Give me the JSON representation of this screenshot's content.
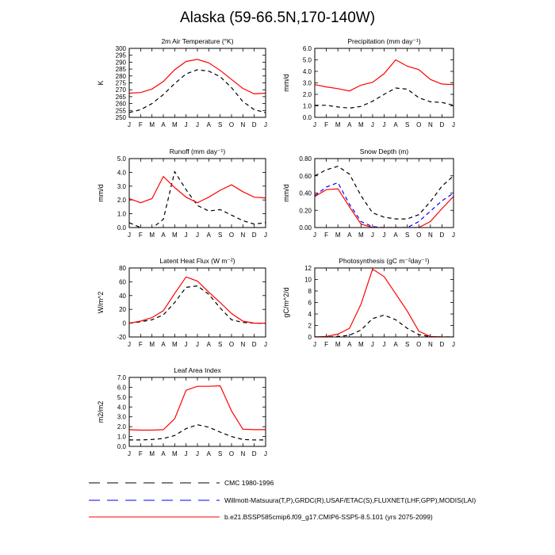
{
  "title": "Alaska (59-66.5N,170-140W)",
  "months": [
    "J",
    "F",
    "M",
    "A",
    "M",
    "J",
    "J",
    "A",
    "S",
    "O",
    "N",
    "D",
    "J"
  ],
  "colors": {
    "cmc": "#000000",
    "obs": "#0000ff",
    "model": "#ff0000"
  },
  "legend": [
    {
      "key": "cmc",
      "label": "CMC 1980-1996",
      "style": "dashed",
      "color": "#000000"
    },
    {
      "key": "obs",
      "label": "Willmott-Matsuura(T,P),GRDC(R),USAF/ETAC(S),FLUXNET(LHF,GPP),MODIS(LAI)",
      "style": "dashed",
      "color": "#0000ff"
    },
    {
      "key": "model",
      "label": "b.e21.BSSP585cmip6.f09_g17.CMIP6-SSP5-8.5.101 (yrs 2075-2099)",
      "style": "solid",
      "color": "#ff0000"
    }
  ],
  "chart_data": [
    {
      "type": "line",
      "title": "2m Air Temperature (°K)",
      "ylabel": "K",
      "ylim": [
        250,
        300
      ],
      "yticks": [
        "250",
        "255",
        "260",
        "265",
        "270",
        "275",
        "280",
        "285",
        "290",
        "295",
        "300"
      ],
      "x": [
        "J",
        "F",
        "M",
        "A",
        "M",
        "J",
        "J",
        "A",
        "S",
        "O",
        "N",
        "D",
        "J"
      ],
      "series": [
        {
          "key": "cmc",
          "values": [
            253.5,
            255.5,
            260,
            266.5,
            274.5,
            281.5,
            284.5,
            283.5,
            279.5,
            271.5,
            261.5,
            255.5,
            253.5
          ]
        },
        {
          "key": "model",
          "values": [
            267.5,
            268,
            270.5,
            276,
            284.5,
            290.5,
            292,
            289.5,
            284,
            277.5,
            271,
            267,
            267.5
          ]
        }
      ]
    },
    {
      "type": "line",
      "title": "Precipitation (mm day⁻¹)",
      "ylabel": "mm/d",
      "ylim": [
        0,
        6
      ],
      "yticks": [
        "0.0",
        "1.0",
        "2.0",
        "3.0",
        "4.0",
        "5.0",
        "6.0"
      ],
      "x": [
        "J",
        "F",
        "M",
        "A",
        "M",
        "J",
        "J",
        "A",
        "S",
        "O",
        "N",
        "D",
        "J"
      ],
      "series": [
        {
          "key": "cmc",
          "values": [
            1.05,
            1.05,
            0.9,
            0.8,
            0.95,
            1.4,
            2.0,
            2.55,
            2.45,
            1.7,
            1.35,
            1.3,
            1.05
          ]
        },
        {
          "key": "model",
          "values": [
            2.85,
            2.65,
            2.5,
            2.3,
            2.8,
            3.05,
            3.8,
            5.0,
            4.45,
            4.15,
            3.3,
            2.9,
            2.85
          ]
        }
      ]
    },
    {
      "type": "line",
      "title": "Runoff (mm day⁻¹)",
      "ylabel": "mm/d",
      "ylim": [
        0,
        5
      ],
      "yticks": [
        "0.0",
        "1.0",
        "2.0",
        "3.0",
        "4.0",
        "5.0"
      ],
      "x": [
        "J",
        "F",
        "M",
        "A",
        "M",
        "J",
        "J",
        "A",
        "S",
        "O",
        "N",
        "D",
        "J"
      ],
      "series": [
        {
          "key": "cmc",
          "values": [
            0.35,
            0.0,
            -0.05,
            0.6,
            4.05,
            2.75,
            1.6,
            1.2,
            1.3,
            0.9,
            0.5,
            0.25,
            0.35
          ]
        },
        {
          "key": "model",
          "values": [
            2.1,
            1.8,
            2.1,
            3.7,
            2.9,
            2.2,
            1.8,
            2.2,
            2.7,
            3.1,
            2.6,
            2.2,
            2.15
          ]
        }
      ]
    },
    {
      "type": "line",
      "title": "Snow Depth (m)",
      "ylabel": "mm/d",
      "ylim": [
        0,
        0.8
      ],
      "yticks": [
        "0.00",
        "0.20",
        "0.40",
        "0.60",
        "0.80"
      ],
      "x": [
        "J",
        "F",
        "M",
        "A",
        "M",
        "J",
        "J",
        "A",
        "S",
        "O",
        "N",
        "D",
        "J"
      ],
      "series": [
        {
          "key": "cmc",
          "values": [
            0.6,
            0.67,
            0.71,
            0.62,
            0.37,
            0.17,
            0.12,
            0.1,
            0.1,
            0.15,
            0.3,
            0.48,
            0.6
          ]
        },
        {
          "key": "obs",
          "values": [
            0.37,
            0.47,
            0.52,
            0.27,
            0.07,
            0.01,
            0.0,
            0.0,
            0.0,
            0.07,
            0.19,
            0.31,
            0.4
          ]
        },
        {
          "key": "model",
          "values": [
            0.36,
            0.44,
            0.45,
            0.24,
            0.04,
            0.0,
            0.0,
            0.0,
            0.0,
            0.0,
            0.07,
            0.22,
            0.36
          ]
        }
      ]
    },
    {
      "type": "line",
      "title": "Latent Heat Flux (W m⁻²)",
      "ylabel": "W/m^2",
      "ylim": [
        -20,
        80
      ],
      "yticks": [
        "-20",
        "0",
        "20",
        "40",
        "60",
        "80"
      ],
      "x": [
        "J",
        "F",
        "M",
        "A",
        "M",
        "J",
        "J",
        "A",
        "S",
        "O",
        "N",
        "D",
        "J"
      ],
      "series": [
        {
          "key": "cmc",
          "values": [
            0,
            2,
            5,
            12,
            30,
            52,
            54,
            42,
            22,
            5,
            1,
            0,
            0
          ]
        },
        {
          "key": "model",
          "values": [
            0,
            3,
            8,
            18,
            43,
            67,
            61,
            45,
            30,
            14,
            3,
            0,
            0
          ]
        }
      ]
    },
    {
      "type": "line",
      "title": "Photosynthesis (gC m⁻²day⁻¹)",
      "ylabel": "gC/m^2/d",
      "ylim": [
        0,
        12
      ],
      "yticks": [
        "0",
        "2",
        "4",
        "6",
        "8",
        "10",
        "12"
      ],
      "x": [
        "J",
        "F",
        "M",
        "A",
        "M",
        "J",
        "J",
        "A",
        "S",
        "O",
        "N",
        "D",
        "J"
      ],
      "series": [
        {
          "key": "cmc",
          "values": [
            0,
            0,
            0.05,
            0.3,
            1.2,
            3.2,
            3.8,
            3.0,
            1.5,
            0.4,
            0.05,
            0,
            0
          ]
        },
        {
          "key": "model",
          "values": [
            0,
            0.1,
            0.5,
            1.5,
            5.7,
            11.8,
            10.5,
            7.5,
            4.5,
            1.0,
            0.1,
            0,
            0
          ]
        }
      ]
    },
    {
      "type": "line",
      "title": "Leaf Area Index",
      "ylabel": "m2/m2",
      "ylim": [
        0,
        7
      ],
      "yticks": [
        "0.0",
        "1.0",
        "2.0",
        "3.0",
        "4.0",
        "5.0",
        "6.0",
        "7.0"
      ],
      "x": [
        "J",
        "F",
        "M",
        "A",
        "M",
        "J",
        "J",
        "A",
        "S",
        "O",
        "N",
        "D",
        "J"
      ],
      "series": [
        {
          "key": "cmc",
          "values": [
            0.65,
            0.65,
            0.7,
            0.8,
            1.1,
            1.8,
            2.2,
            1.95,
            1.45,
            1.0,
            0.7,
            0.65,
            0.65
          ]
        },
        {
          "key": "model",
          "values": [
            1.7,
            1.65,
            1.65,
            1.7,
            2.8,
            5.7,
            6.1,
            6.1,
            6.15,
            3.6,
            1.75,
            1.7,
            1.7
          ]
        }
      ]
    }
  ]
}
